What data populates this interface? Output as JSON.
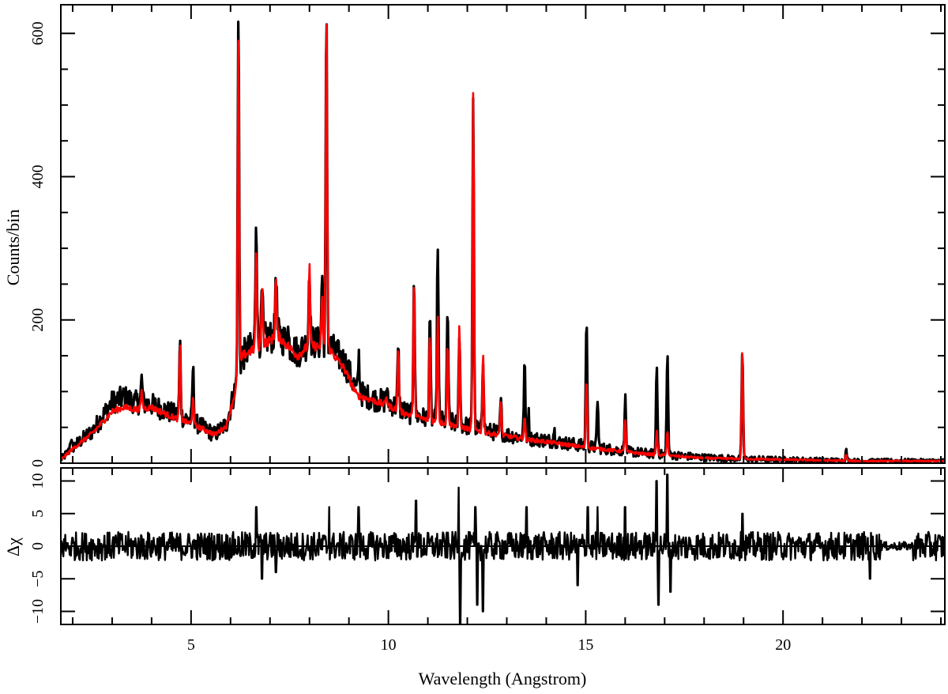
{
  "chart_data": [
    {
      "type": "line",
      "xlabel": "",
      "ylabel": "Counts/bin",
      "xlim": [
        1.7,
        24.1
      ],
      "ylim": [
        0,
        640
      ],
      "x_ticks": [
        5,
        10,
        15,
        20
      ],
      "y_ticks": [
        0,
        200,
        400,
        600
      ],
      "y_tick_labels": [
        "0",
        "200",
        "400",
        "600"
      ],
      "series": [
        {
          "color": "#000000",
          "continuum": [
            [
              1.7,
              5
            ],
            [
              2.0,
              22
            ],
            [
              2.5,
              45
            ],
            [
              3.0,
              85
            ],
            [
              3.3,
              92
            ],
            [
              3.6,
              85
            ],
            [
              4.0,
              82
            ],
            [
              4.5,
              70
            ],
            [
              5.0,
              60
            ],
            [
              5.3,
              50
            ],
            [
              5.6,
              40
            ],
            [
              5.9,
              55
            ],
            [
              6.1,
              100
            ],
            [
              6.3,
              150
            ],
            [
              6.7,
              170
            ],
            [
              7.2,
              180
            ],
            [
              7.7,
              155
            ],
            [
              8.0,
              170
            ],
            [
              8.5,
              165
            ],
            [
              8.9,
              140
            ],
            [
              9.2,
              100
            ],
            [
              9.6,
              90
            ],
            [
              10.0,
              85
            ],
            [
              10.5,
              70
            ],
            [
              11.0,
              62
            ],
            [
              11.5,
              58
            ],
            [
              12.0,
              52
            ],
            [
              12.5,
              45
            ],
            [
              13.0,
              40
            ],
            [
              13.5,
              35
            ],
            [
              14.0,
              32
            ],
            [
              14.5,
              28
            ],
            [
              15.0,
              24
            ],
            [
              15.5,
              20
            ],
            [
              16.0,
              17
            ],
            [
              16.5,
              14
            ],
            [
              17.0,
              12
            ],
            [
              17.5,
              10
            ],
            [
              18.0,
              8
            ],
            [
              19.0,
              6
            ],
            [
              20.0,
              5
            ],
            [
              21.0,
              4
            ],
            [
              22.0,
              3
            ],
            [
              23.0,
              3
            ],
            [
              24.1,
              3
            ]
          ],
          "lines": [
            [
              1.95,
              35
            ],
            [
              3.75,
              118
            ],
            [
              4.72,
              168
            ],
            [
              5.05,
              135
            ],
            [
              6.2,
              632
            ],
            [
              6.65,
              350
            ],
            [
              6.8,
              240
            ],
            [
              7.15,
              275
            ],
            [
              7.45,
              190
            ],
            [
              8.0,
              280
            ],
            [
              8.32,
              265
            ],
            [
              8.43,
              620
            ],
            [
              9.25,
              150
            ],
            [
              9.95,
              105
            ],
            [
              10.25,
              160
            ],
            [
              10.65,
              268
            ],
            [
              11.05,
              205
            ],
            [
              11.25,
              310
            ],
            [
              11.5,
              215
            ],
            [
              11.8,
              190
            ],
            [
              12.15,
              515
            ],
            [
              12.4,
              150
            ],
            [
              12.85,
              85
            ],
            [
              13.45,
              140
            ],
            [
              13.55,
              70
            ],
            [
              14.2,
              48
            ],
            [
              15.02,
              203
            ],
            [
              15.3,
              90
            ],
            [
              16.0,
              92
            ],
            [
              16.8,
              135
            ],
            [
              17.07,
              155
            ],
            [
              18.97,
              160
            ],
            [
              21.6,
              18
            ]
          ],
          "noise": 18
        },
        {
          "color": "#ff0000",
          "continuum": [
            [
              1.7,
              5
            ],
            [
              2.0,
              20
            ],
            [
              2.5,
              42
            ],
            [
              3.0,
              72
            ],
            [
              3.3,
              78
            ],
            [
              3.6,
              75
            ],
            [
              4.0,
              78
            ],
            [
              4.5,
              65
            ],
            [
              5.0,
              55
            ],
            [
              5.3,
              48
            ],
            [
              5.6,
              40
            ],
            [
              5.9,
              52
            ],
            [
              6.1,
              95
            ],
            [
              6.3,
              150
            ],
            [
              6.7,
              162
            ],
            [
              7.2,
              178
            ],
            [
              7.7,
              150
            ],
            [
              8.0,
              165
            ],
            [
              8.5,
              160
            ],
            [
              8.9,
              130
            ],
            [
              9.2,
              95
            ],
            [
              9.6,
              88
            ],
            [
              10.0,
              80
            ],
            [
              10.5,
              68
            ],
            [
              11.0,
              60
            ],
            [
              11.5,
              55
            ],
            [
              12.0,
              48
            ],
            [
              12.5,
              42
            ],
            [
              13.0,
              38
            ],
            [
              13.5,
              33
            ],
            [
              14.0,
              30
            ],
            [
              14.5,
              26
            ],
            [
              15.0,
              22
            ],
            [
              15.5,
              19
            ],
            [
              16.0,
              16
            ],
            [
              16.5,
              13
            ],
            [
              17.0,
              11
            ],
            [
              17.5,
              9
            ],
            [
              18.0,
              7
            ],
            [
              19.0,
              6
            ],
            [
              20.0,
              5
            ],
            [
              21.0,
              4
            ],
            [
              22.0,
              3
            ],
            [
              23.0,
              3
            ],
            [
              24.1,
              3
            ]
          ],
          "lines": [
            [
              3.75,
              100
            ],
            [
              4.72,
              165
            ],
            [
              5.05,
              95
            ],
            [
              6.2,
              606
            ],
            [
              6.65,
              295
            ],
            [
              6.8,
              250
            ],
            [
              7.15,
              260
            ],
            [
              8.0,
              275
            ],
            [
              8.32,
              230
            ],
            [
              8.43,
              638
            ],
            [
              9.95,
              95
            ],
            [
              10.25,
              160
            ],
            [
              10.65,
              252
            ],
            [
              11.05,
              180
            ],
            [
              11.25,
              205
            ],
            [
              11.5,
              170
            ],
            [
              11.8,
              195
            ],
            [
              12.15,
              522
            ],
            [
              12.4,
              155
            ],
            [
              12.85,
              88
            ],
            [
              13.45,
              65
            ],
            [
              15.02,
              120
            ],
            [
              16.0,
              62
            ],
            [
              16.8,
              45
            ],
            [
              17.07,
              45
            ],
            [
              18.97,
              162
            ],
            [
              21.6,
              12
            ]
          ],
          "noise": 5
        }
      ]
    },
    {
      "type": "line",
      "xlabel": "Wavelength (Angstrom)",
      "ylabel": "Δχ",
      "xlim": [
        1.7,
        24.1
      ],
      "ylim": [
        -12,
        12
      ],
      "x_ticks": [
        5,
        10,
        15,
        20
      ],
      "x_tick_labels": [
        "5",
        "10",
        "15",
        "20"
      ],
      "y_ticks": [
        -10,
        -5,
        0,
        5,
        10
      ],
      "y_tick_labels": [
        "−10",
        "−5",
        "0",
        "5",
        "10"
      ],
      "zero_line": true,
      "series": [
        {
          "color": "#000000",
          "spikes": [
            [
              6.65,
              6
            ],
            [
              6.8,
              -5
            ],
            [
              7.15,
              -4
            ],
            [
              8.5,
              6
            ],
            [
              9.25,
              6
            ],
            [
              10.7,
              7
            ],
            [
              11.78,
              9
            ],
            [
              11.82,
              -12
            ],
            [
              12.2,
              6
            ],
            [
              12.25,
              -9
            ],
            [
              12.4,
              -10
            ],
            [
              13.5,
              6
            ],
            [
              14.8,
              -6
            ],
            [
              15.05,
              6
            ],
            [
              15.3,
              6
            ],
            [
              16.0,
              6
            ],
            [
              16.8,
              10
            ],
            [
              16.85,
              -9
            ],
            [
              17.07,
              11
            ],
            [
              17.15,
              -7
            ],
            [
              18.97,
              5
            ],
            [
              22.2,
              -5
            ]
          ],
          "noise": 2.2
        }
      ]
    }
  ]
}
